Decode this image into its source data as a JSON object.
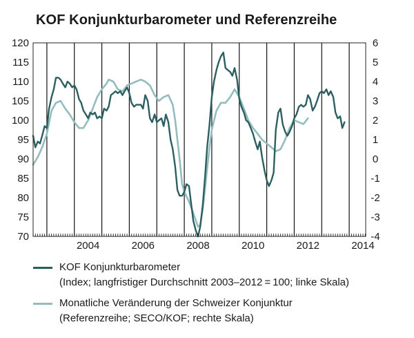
{
  "chart_data": {
    "type": "line",
    "title": "KOF Konjunkturbarometer und Referenzreihe",
    "x_tick_labels": [
      "2004",
      "2006",
      "2008",
      "2010",
      "2012",
      "2014"
    ],
    "x_range": [
      2002.5,
      2014.6
    ],
    "y_left": {
      "range": [
        70,
        120
      ],
      "ticks": [
        "70",
        "75",
        "80",
        "85",
        "90",
        "95",
        "100",
        "105",
        "110",
        "115",
        "120"
      ]
    },
    "y_right": {
      "range": [
        -4,
        6
      ],
      "ticks": [
        "-4",
        "-3",
        "-2",
        "-1",
        "0",
        "1",
        "2",
        "3",
        "4",
        "5",
        "6"
      ]
    },
    "grid": "vertical lines at year boundaries",
    "series": [
      {
        "name": "KOF Konjunkturbarometer",
        "description": "(Index; langfristiger Durchschnitt 2003–2012 = 100; linke Skala)",
        "axis": "left",
        "color": "#2b5e60",
        "points": [
          [
            2002.5,
            96.0
          ],
          [
            2002.58,
            93.0
          ],
          [
            2002.67,
            94.5
          ],
          [
            2002.75,
            94.0
          ],
          [
            2002.83,
            96.0
          ],
          [
            2002.92,
            98.5
          ],
          [
            2003.0,
            98.0
          ],
          [
            2003.08,
            103.0
          ],
          [
            2003.17,
            106.0
          ],
          [
            2003.25,
            108.0
          ],
          [
            2003.33,
            111.0
          ],
          [
            2003.42,
            111.0
          ],
          [
            2003.5,
            110.5
          ],
          [
            2003.58,
            109.5
          ],
          [
            2003.67,
            108.5
          ],
          [
            2003.75,
            110.0
          ],
          [
            2003.83,
            109.5
          ],
          [
            2003.92,
            108.5
          ],
          [
            2004.0,
            109.0
          ],
          [
            2004.08,
            108.0
          ],
          [
            2004.17,
            105.5
          ],
          [
            2004.25,
            104.5
          ],
          [
            2004.33,
            102.5
          ],
          [
            2004.42,
            101.5
          ],
          [
            2004.5,
            100.5
          ],
          [
            2004.58,
            102.0
          ],
          [
            2004.67,
            101.5
          ],
          [
            2004.75,
            102.0
          ],
          [
            2004.83,
            100.5
          ],
          [
            2004.92,
            101.0
          ],
          [
            2005.0,
            100.5
          ],
          [
            2005.08,
            103.0
          ],
          [
            2005.17,
            102.5
          ],
          [
            2005.25,
            103.5
          ],
          [
            2005.33,
            106.5
          ],
          [
            2005.42,
            107.0
          ],
          [
            2005.5,
            107.5
          ],
          [
            2005.58,
            107.0
          ],
          [
            2005.67,
            107.5
          ],
          [
            2005.75,
            106.5
          ],
          [
            2005.83,
            107.5
          ],
          [
            2005.92,
            108.5
          ],
          [
            2006.0,
            107.0
          ],
          [
            2006.08,
            104.5
          ],
          [
            2006.17,
            103.5
          ],
          [
            2006.25,
            104.0
          ],
          [
            2006.33,
            104.0
          ],
          [
            2006.42,
            104.0
          ],
          [
            2006.5,
            103.0
          ],
          [
            2006.58,
            106.5
          ],
          [
            2006.67,
            105.0
          ],
          [
            2006.75,
            100.5
          ],
          [
            2006.83,
            99.5
          ],
          [
            2006.92,
            101.5
          ],
          [
            2007.0,
            99.5
          ],
          [
            2007.08,
            100.0
          ],
          [
            2007.17,
            100.5
          ],
          [
            2007.25,
            98.5
          ],
          [
            2007.33,
            101.5
          ],
          [
            2007.42,
            99.5
          ],
          [
            2007.5,
            95.0
          ],
          [
            2007.58,
            92.5
          ],
          [
            2007.67,
            88.0
          ],
          [
            2007.75,
            82.0
          ],
          [
            2007.83,
            80.5
          ],
          [
            2007.92,
            80.5
          ],
          [
            2008.0,
            81.5
          ],
          [
            2008.08,
            83.5
          ],
          [
            2008.17,
            83.0
          ],
          [
            2008.25,
            78.5
          ],
          [
            2008.33,
            74.0
          ],
          [
            2008.42,
            71.5
          ],
          [
            2008.5,
            70.0
          ],
          [
            2008.58,
            72.5
          ],
          [
            2008.67,
            78.0
          ],
          [
            2008.75,
            85.0
          ],
          [
            2008.83,
            93.0
          ],
          [
            2008.92,
            99.0
          ],
          [
            2009.0,
            106.0
          ],
          [
            2009.08,
            110.0
          ],
          [
            2009.17,
            113.0
          ],
          [
            2009.25,
            115.0
          ],
          [
            2009.33,
            116.5
          ],
          [
            2009.42,
            117.5
          ],
          [
            2009.5,
            113.5
          ],
          [
            2009.58,
            113.0
          ],
          [
            2009.67,
            112.5
          ],
          [
            2009.75,
            111.5
          ],
          [
            2009.83,
            113.5
          ],
          [
            2009.92,
            110.5
          ],
          [
            2010.0,
            105.5
          ],
          [
            2010.08,
            103.5
          ],
          [
            2010.17,
            102.0
          ],
          [
            2010.25,
            100.0
          ],
          [
            2010.33,
            99.5
          ],
          [
            2010.42,
            98.0
          ],
          [
            2010.5,
            96.5
          ],
          [
            2010.58,
            94.5
          ],
          [
            2010.67,
            92.5
          ],
          [
            2010.75,
            94.5
          ],
          [
            2010.83,
            90.5
          ],
          [
            2010.92,
            87.0
          ],
          [
            2011.0,
            84.5
          ],
          [
            2011.08,
            83.0
          ],
          [
            2011.17,
            84.5
          ],
          [
            2011.25,
            86.5
          ],
          [
            2011.33,
            97.5
          ],
          [
            2011.42,
            102.0
          ],
          [
            2011.5,
            103.0
          ],
          [
            2011.58,
            99.0
          ],
          [
            2011.67,
            97.0
          ],
          [
            2011.75,
            96.0
          ],
          [
            2011.83,
            97.0
          ],
          [
            2011.92,
            98.5
          ],
          [
            2012.0,
            100.5
          ],
          [
            2012.08,
            101.5
          ],
          [
            2012.17,
            103.5
          ],
          [
            2012.25,
            104.0
          ],
          [
            2012.33,
            103.5
          ],
          [
            2012.42,
            104.0
          ],
          [
            2012.5,
            106.5
          ],
          [
            2012.58,
            105.5
          ],
          [
            2012.67,
            102.5
          ],
          [
            2012.75,
            103.5
          ],
          [
            2012.83,
            105.0
          ],
          [
            2012.92,
            107.0
          ],
          [
            2013.0,
            107.5
          ],
          [
            2013.08,
            107.0
          ],
          [
            2013.17,
            108.0
          ],
          [
            2013.25,
            106.5
          ],
          [
            2013.33,
            107.5
          ],
          [
            2013.42,
            106.0
          ],
          [
            2013.5,
            102.0
          ],
          [
            2013.58,
            100.5
          ],
          [
            2013.67,
            101.0
          ],
          [
            2013.75,
            98.0
          ],
          [
            2013.83,
            99.5
          ]
        ]
      },
      {
        "name": "Monatliche Veränderung der Schweizer Konjunktur",
        "description": "(Referenzreihe; SECO/KOF; rechte Skala)",
        "axis": "right",
        "color": "#92bcbd",
        "points": [
          [
            2002.5,
            -0.3
          ],
          [
            2002.67,
            0.1
          ],
          [
            2002.83,
            0.6
          ],
          [
            2003.0,
            1.3
          ],
          [
            2003.17,
            2.5
          ],
          [
            2003.33,
            2.9
          ],
          [
            2003.5,
            3.0
          ],
          [
            2003.67,
            2.6
          ],
          [
            2003.83,
            2.3
          ],
          [
            2004.0,
            1.9
          ],
          [
            2004.17,
            1.6
          ],
          [
            2004.33,
            1.6
          ],
          [
            2004.5,
            2.0
          ],
          [
            2004.67,
            2.6
          ],
          [
            2004.83,
            3.2
          ],
          [
            2005.0,
            3.6
          ],
          [
            2005.17,
            3.9
          ],
          [
            2005.25,
            4.1
          ],
          [
            2005.42,
            4.0
          ],
          [
            2005.58,
            3.6
          ],
          [
            2005.75,
            3.5
          ],
          [
            2005.92,
            3.8
          ],
          [
            2006.08,
            3.9
          ],
          [
            2006.25,
            4.0
          ],
          [
            2006.42,
            4.1
          ],
          [
            2006.58,
            4.0
          ],
          [
            2006.75,
            3.8
          ],
          [
            2006.92,
            3.3
          ],
          [
            2007.08,
            3.0
          ],
          [
            2007.25,
            3.2
          ],
          [
            2007.42,
            3.3
          ],
          [
            2007.58,
            2.8
          ],
          [
            2007.67,
            2.0
          ],
          [
            2007.75,
            1.0
          ],
          [
            2007.83,
            0.0
          ],
          [
            2007.92,
            -1.3
          ],
          [
            2008.0,
            -1.7
          ],
          [
            2008.17,
            -2.2
          ],
          [
            2008.33,
            -2.8
          ],
          [
            2008.5,
            -3.5
          ],
          [
            2008.58,
            -3.4
          ],
          [
            2008.67,
            -2.6
          ],
          [
            2008.75,
            -1.6
          ],
          [
            2008.83,
            -0.5
          ],
          [
            2008.92,
            0.6
          ],
          [
            2009.0,
            1.5
          ],
          [
            2009.17,
            2.5
          ],
          [
            2009.33,
            2.9
          ],
          [
            2009.5,
            2.9
          ],
          [
            2009.67,
            3.2
          ],
          [
            2009.83,
            3.6
          ],
          [
            2010.0,
            3.2
          ],
          [
            2010.17,
            2.6
          ],
          [
            2010.33,
            2.0
          ],
          [
            2010.5,
            1.6
          ],
          [
            2010.67,
            1.3
          ],
          [
            2010.83,
            1.0
          ],
          [
            2011.0,
            0.8
          ],
          [
            2011.17,
            0.6
          ],
          [
            2011.33,
            0.4
          ],
          [
            2011.5,
            0.5
          ],
          [
            2011.67,
            1.0
          ],
          [
            2011.83,
            1.6
          ],
          [
            2012.0,
            2.0
          ],
          [
            2012.17,
            1.9
          ],
          [
            2012.33,
            1.8
          ],
          [
            2012.5,
            2.1
          ]
        ]
      }
    ]
  }
}
